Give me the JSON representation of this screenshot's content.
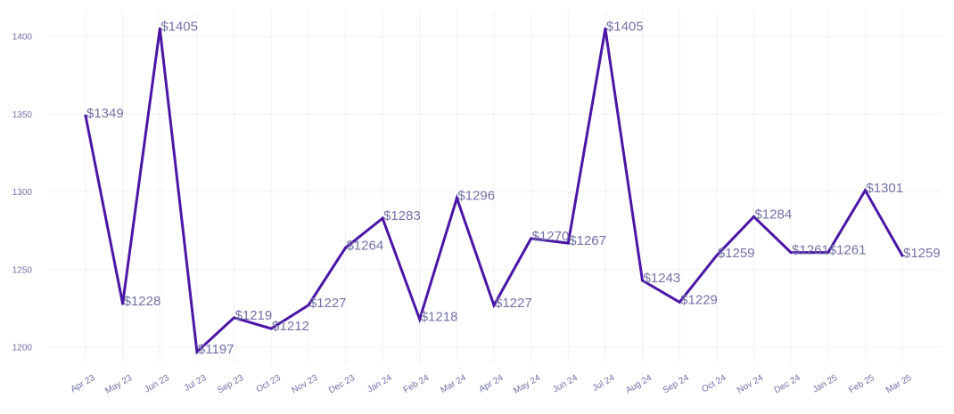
{
  "chart_data": {
    "type": "line",
    "title": "",
    "xlabel": "",
    "ylabel": "",
    "ylim": [
      1190,
      1415
    ],
    "yticks": [
      1200,
      1250,
      1300,
      1350,
      1400
    ],
    "grid": true,
    "line_color": "#4b16a6",
    "label_prefix": "$",
    "categories": [
      "Apr 23",
      "May 23",
      "Jun 23",
      "Jul 23",
      "Sep 23",
      "Oct 23",
      "Nov 23",
      "Dec 23",
      "Jan 24",
      "Feb 24",
      "Mar 24",
      "Apr 24",
      "May 24",
      "Jun 24",
      "Jul 24",
      "Aug 24",
      "Sep 24",
      "Oct 24",
      "Nov 24",
      "Dec 24",
      "Jan 25",
      "Feb 25",
      "Mar 25"
    ],
    "values": [
      1349,
      1228,
      1405,
      1197,
      1219,
      1212,
      1227,
      1264,
      1283,
      1218,
      1296,
      1227,
      1270,
      1267,
      1405,
      1243,
      1229,
      1259,
      1284,
      1261,
      1261,
      1301,
      1259
    ],
    "data_labels": [
      "$1349",
      "$1228",
      "$1405",
      "$1197",
      "$1219",
      "$1212",
      "$1227",
      "$1264",
      "$1283",
      "$1218",
      "$1296",
      "$1227",
      "$1270",
      "$1267",
      "$1405",
      "$1243",
      "$1229",
      "$1259",
      "$1284",
      "$1261",
      "$1261",
      "$1301",
      "$1259"
    ]
  }
}
